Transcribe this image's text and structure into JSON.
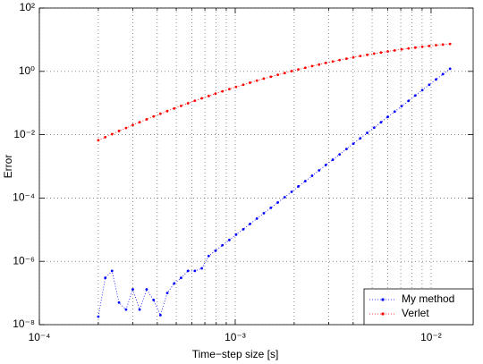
{
  "chart_data": {
    "type": "line",
    "xlabel": "Time−step size [s]",
    "ylabel": "Error",
    "xlog": true,
    "ylog": true,
    "grid": true,
    "legend": "lower right",
    "xlim": [
      0.0001,
      0.0164
    ],
    "ylim": [
      1e-08,
      100
    ],
    "xticks": [
      {
        "value": 0.0001,
        "label": "10⁻⁴"
      },
      {
        "value": 0.001,
        "label": "10⁻³"
      },
      {
        "value": 0.01,
        "label": "10⁻²"
      }
    ],
    "xminorticks": [
      0.0002,
      0.0003,
      0.0004,
      0.0005,
      0.0006,
      0.0007,
      0.0008,
      0.0009,
      0.002,
      0.003,
      0.004,
      0.005,
      0.006,
      0.007,
      0.008,
      0.009
    ],
    "yticks": [
      {
        "value": 1e-08,
        "label": "10⁻⁸"
      },
      {
        "value": 1e-06,
        "label": "10⁻⁶"
      },
      {
        "value": 0.0001,
        "label": "10⁻⁴"
      },
      {
        "value": 0.01,
        "label": "10⁻²"
      },
      {
        "value": 1,
        "label": "10⁰"
      },
      {
        "value": 100,
        "label": "10²"
      }
    ],
    "x": [
      0.0002,
      0.000217,
      0.000235,
      0.000255,
      0.000277,
      0.0003,
      0.000325,
      0.000353,
      0.000383,
      0.000415,
      0.00045,
      0.000488,
      0.000529,
      0.000574,
      0.000622,
      0.000675,
      0.000732,
      0.000793,
      0.00086,
      0.000933,
      0.00101,
      0.0011,
      0.00119,
      0.00129,
      0.0014,
      0.00152,
      0.00165,
      0.00179,
      0.00194,
      0.0021,
      0.00228,
      0.00247,
      0.00268,
      0.0029,
      0.00315,
      0.00341,
      0.0037,
      0.00401,
      0.00435,
      0.00472,
      0.00512,
      0.00555,
      0.00601,
      0.00652,
      0.00707,
      0.00767,
      0.00831,
      0.00902,
      0.00978,
      0.0106,
      0.0115,
      0.0125
    ],
    "series": [
      {
        "name": "My method",
        "color": "#0000ff",
        "values": [
          1.8e-08,
          3e-07,
          5e-07,
          5e-08,
          3e-08,
          1.3e-07,
          3e-08,
          1.3e-07,
          6e-08,
          2e-08,
          1e-07,
          2e-07,
          3e-07,
          5e-07,
          5e-07,
          6e-07,
          1.47e-06,
          2.17e-06,
          3.21e-06,
          4.73e-06,
          6.98e-06,
          1.03e-05,
          1.52e-05,
          2.24e-05,
          3.31e-05,
          4.89e-05,
          7.21e-05,
          0.000106,
          0.000157,
          0.000232,
          0.000342,
          0.000505,
          0.000745,
          0.0011,
          0.00162,
          0.00239,
          0.00353,
          0.00521,
          0.00769,
          0.0114,
          0.0167,
          0.0247,
          0.0365,
          0.0538,
          0.0794,
          0.117,
          0.173,
          0.255,
          0.377,
          0.556,
          0.82,
          1.21
        ]
      },
      {
        "name": "Verlet",
        "color": "#ff0000",
        "values": [
          0.00667,
          0.00836,
          0.0104,
          0.0131,
          0.0163,
          0.0202,
          0.0248,
          0.0305,
          0.0377,
          0.0458,
          0.0557,
          0.0676,
          0.0815,
          0.0984,
          0.118,
          0.141,
          0.167,
          0.198,
          0.234,
          0.276,
          0.324,
          0.378,
          0.439,
          0.511,
          0.59,
          0.679,
          0.778,
          0.889,
          1.02,
          1.15,
          1.3,
          1.47,
          1.64,
          1.85,
          2.05,
          2.28,
          2.52,
          2.77,
          3.05,
          3.33,
          3.64,
          3.94,
          4.27,
          4.6,
          4.95,
          5.3,
          5.64,
          5.98,
          6.34,
          6.7,
          7.03,
          7.36
        ]
      }
    ]
  }
}
